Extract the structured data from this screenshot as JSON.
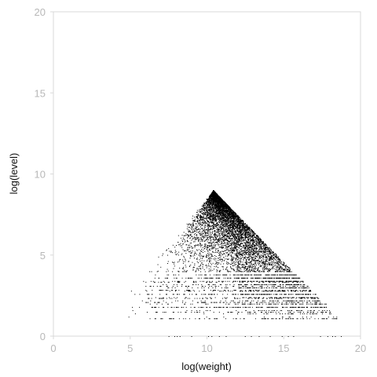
{
  "chart_data": {
    "type": "scatter",
    "xlabel": "log(weight)",
    "ylabel": "log(level)",
    "xlim": [
      0,
      20
    ],
    "ylim": [
      0,
      20
    ],
    "x_ticks": [
      "0",
      "5",
      "10",
      "15",
      "20"
    ],
    "y_ticks": [
      "0",
      "5",
      "10",
      "15",
      "20"
    ],
    "grid": false,
    "legend": "none",
    "point_color": "#000000",
    "axis_color": "#d9d9d9",
    "tick_label_color": "#b8b8b8",
    "region": {
      "apex": [
        10.4,
        9.0
      ],
      "left_edge_end": [
        4.8,
        2.6
      ],
      "right_edge_end": [
        18.6,
        1.1
      ],
      "baseline_end_x": 19.6,
      "level_floor": 1.1
    }
  }
}
